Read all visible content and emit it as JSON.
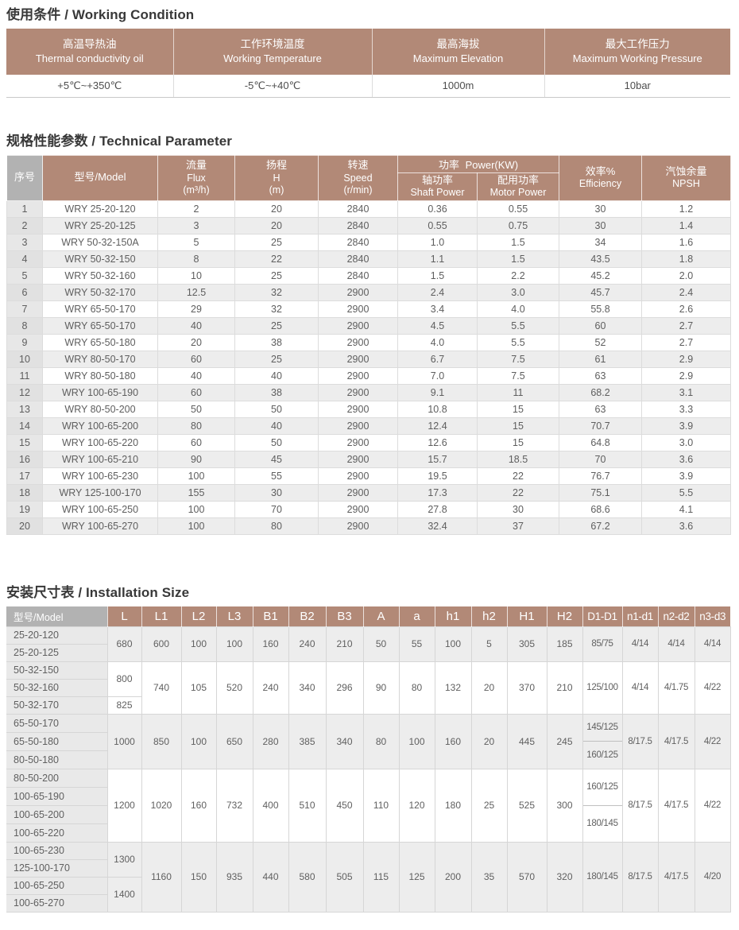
{
  "colors": {
    "header_brown": "#b28977",
    "header_gray": "#b2b2b2",
    "row_stripe": "#ededed",
    "title_text": "#383838"
  },
  "working_condition": {
    "title": "使用条件 / Working Condition",
    "columns": [
      {
        "zh": "高温导热油",
        "en": "Thermal conductivity oil",
        "value": "+5℃~+350℃"
      },
      {
        "zh": "工作环境温度",
        "en": "Working Temperature",
        "value": "-5℃~+40℃"
      },
      {
        "zh": "最高海拔",
        "en": "Maximum Elevation",
        "value": "1000m"
      },
      {
        "zh": "最大工作压力",
        "en": "Maximum Working Pressure",
        "value": "10bar"
      }
    ]
  },
  "technical_parameter": {
    "title": "规格性能参数 / Technical Parameter",
    "headers": {
      "no": "序号",
      "model": "型号/Model",
      "flux": [
        "流量",
        "Flux",
        "(m³/h)"
      ],
      "head": [
        "扬程",
        "H",
        "(m)"
      ],
      "speed": [
        "转速",
        "Speed",
        "(r/min)"
      ],
      "power_group": "功率 Power(KW)",
      "shaft": [
        "轴功率",
        "Shaft Power"
      ],
      "motor": [
        "配用功率",
        "Motor Power"
      ],
      "efficiency": [
        "效率%",
        "Efficiency"
      ],
      "npsh": [
        "汽蚀余量",
        "NPSH"
      ]
    },
    "rows": [
      [
        "1",
        "WRY 25-20-120",
        "2",
        "20",
        "2840",
        "0.36",
        "0.55",
        "30",
        "1.2"
      ],
      [
        "2",
        "WRY 25-20-125",
        "3",
        "20",
        "2840",
        "0.55",
        "0.75",
        "30",
        "1.4"
      ],
      [
        "3",
        "WRY 50-32-150A",
        "5",
        "25",
        "2840",
        "1.0",
        "1.5",
        "34",
        "1.6"
      ],
      [
        "4",
        "WRY 50-32-150",
        "8",
        "22",
        "2840",
        "1.1",
        "1.5",
        "43.5",
        "1.8"
      ],
      [
        "5",
        "WRY 50-32-160",
        "10",
        "25",
        "2840",
        "1.5",
        "2.2",
        "45.2",
        "2.0"
      ],
      [
        "6",
        "WRY 50-32-170",
        "12.5",
        "32",
        "2900",
        "2.4",
        "3.0",
        "45.7",
        "2.4"
      ],
      [
        "7",
        "WRY 65-50-170",
        "29",
        "32",
        "2900",
        "3.4",
        "4.0",
        "55.8",
        "2.6"
      ],
      [
        "8",
        "WRY 65-50-170",
        "40",
        "25",
        "2900",
        "4.5",
        "5.5",
        "60",
        "2.7"
      ],
      [
        "9",
        "WRY 65-50-180",
        "20",
        "38",
        "2900",
        "4.0",
        "5.5",
        "52",
        "2.7"
      ],
      [
        "10",
        "WRY 80-50-170",
        "60",
        "25",
        "2900",
        "6.7",
        "7.5",
        "61",
        "2.9"
      ],
      [
        "11",
        "WRY 80-50-180",
        "40",
        "40",
        "2900",
        "7.0",
        "7.5",
        "63",
        "2.9"
      ],
      [
        "12",
        "WRY 100-65-190",
        "60",
        "38",
        "2900",
        "9.1",
        "11",
        "68.2",
        "3.1"
      ],
      [
        "13",
        "WRY 80-50-200",
        "50",
        "50",
        "2900",
        "10.8",
        "15",
        "63",
        "3.3"
      ],
      [
        "14",
        "WRY 100-65-200",
        "80",
        "40",
        "2900",
        "12.4",
        "15",
        "70.7",
        "3.9"
      ],
      [
        "15",
        "WRY 100-65-220",
        "60",
        "50",
        "2900",
        "12.6",
        "15",
        "64.8",
        "3.0"
      ],
      [
        "16",
        "WRY 100-65-210",
        "90",
        "45",
        "2900",
        "15.7",
        "18.5",
        "70",
        "3.6"
      ],
      [
        "17",
        "WRY 100-65-230",
        "100",
        "55",
        "2900",
        "19.5",
        "22",
        "76.7",
        "3.9"
      ],
      [
        "18",
        "WRY 125-100-170",
        "155",
        "30",
        "2900",
        "17.3",
        "22",
        "75.1",
        "5.5"
      ],
      [
        "19",
        "WRY 100-65-250",
        "100",
        "70",
        "2900",
        "27.8",
        "30",
        "68.6",
        "4.1"
      ],
      [
        "20",
        "WRY 100-65-270",
        "100",
        "80",
        "2900",
        "32.4",
        "37",
        "67.2",
        "3.6"
      ]
    ]
  },
  "installation_size": {
    "title": "安装尺寸表 / Installation Size",
    "headers": [
      "型号/Model",
      "L",
      "L1",
      "L2",
      "L3",
      "B1",
      "B2",
      "B3",
      "A",
      "a",
      "h1",
      "h2",
      "H1",
      "H2",
      "D1-D1",
      "n1-d1",
      "n2-d2",
      "n3-d3"
    ],
    "groups": [
      {
        "models": [
          "25-20-120",
          "25-20-125"
        ],
        "L": [
          {
            "value": "680",
            "span": 2
          }
        ],
        "dims": [
          "600",
          "100",
          "100",
          "160",
          "240",
          "210",
          "50",
          "55",
          "100",
          "5",
          "305",
          "185"
        ],
        "d1d1": [
          "85/75"
        ],
        "n1d1": "4/14",
        "n2d2": "4/14",
        "n3d3": "4/14",
        "striped": true
      },
      {
        "models": [
          "50-32-150",
          "50-32-160",
          "50-32-170"
        ],
        "L": [
          {
            "value": "800",
            "span": 2
          },
          {
            "value": "825",
            "span": 1
          }
        ],
        "dims": [
          "740",
          "105",
          "520",
          "240",
          "340",
          "296",
          "90",
          "80",
          "132",
          "20",
          "370",
          "210"
        ],
        "d1d1": [
          "125/100"
        ],
        "n1d1": "4/14",
        "n2d2": "4/1.75",
        "n3d3": "4/22",
        "striped": false
      },
      {
        "models": [
          "65-50-170",
          "65-50-180",
          "80-50-180"
        ],
        "L": [
          {
            "value": "1000",
            "span": 3
          }
        ],
        "dims": [
          "850",
          "100",
          "650",
          "280",
          "385",
          "340",
          "80",
          "100",
          "160",
          "20",
          "445",
          "245"
        ],
        "d1d1": [
          "145/125",
          "160/125"
        ],
        "n1d1": "8/17.5",
        "n2d2": "4/17.5",
        "n3d3": "4/22",
        "striped": true
      },
      {
        "models": [
          "80-50-200",
          "100-65-190",
          "100-65-200",
          "100-65-220"
        ],
        "L": [
          {
            "value": "1200",
            "span": 4
          }
        ],
        "dims": [
          "1020",
          "160",
          "732",
          "400",
          "510",
          "450",
          "110",
          "120",
          "180",
          "25",
          "525",
          "300"
        ],
        "d1d1": [
          "160/125",
          "180/145"
        ],
        "n1d1": "8/17.5",
        "n2d2": "4/17.5",
        "n3d3": "4/22",
        "striped": false
      },
      {
        "models": [
          "100-65-230",
          "125-100-170",
          "100-65-250",
          "100-65-270"
        ],
        "L": [
          {
            "value": "1300",
            "span": 2
          },
          {
            "value": "1400",
            "span": 2
          }
        ],
        "dims": [
          "1160",
          "150",
          "935",
          "440",
          "580",
          "505",
          "115",
          "125",
          "200",
          "35",
          "570",
          "320"
        ],
        "d1d1": [
          "180/145"
        ],
        "n1d1": "8/17.5",
        "n2d2": "4/17.5",
        "n3d3": "4/20",
        "striped": true
      }
    ]
  }
}
